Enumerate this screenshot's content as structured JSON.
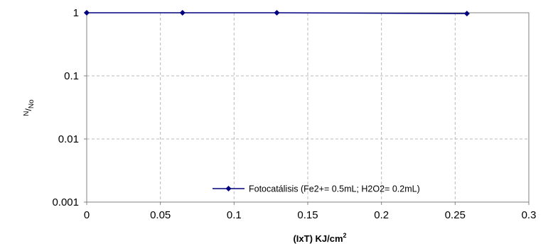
{
  "chart_data": {
    "type": "line",
    "xlabel_main": "(IxT) KJ/cm",
    "xlabel_sup": "2",
    "ylabel_num": "N",
    "ylabel_den": "No",
    "x_scale": "linear",
    "y_scale": "log",
    "xlim": [
      0,
      0.3
    ],
    "ylim": [
      0.001,
      1
    ],
    "x_ticks": [
      "0",
      "0.05",
      "0.1",
      "0.15",
      "0.2",
      "0.25",
      "0.3"
    ],
    "y_ticks": [
      "1",
      "0.1",
      "0.01",
      "0.001"
    ],
    "grid": "dashed",
    "legend_position": "bottom-right",
    "series": [
      {
        "name": "Fotocatálisis (Fe2+= 0.5mL; H2O2= 0.2mL)",
        "color": "#00007f",
        "marker": "diamond",
        "x": [
          0,
          0.065,
          0.129,
          0.258
        ],
        "y": [
          1,
          1,
          1,
          0.97
        ]
      }
    ]
  }
}
